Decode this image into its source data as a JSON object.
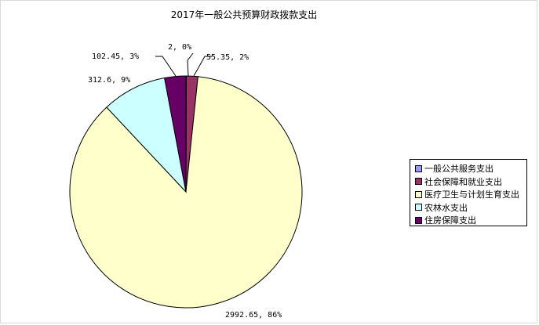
{
  "chart_data": {
    "type": "pie",
    "title": "2017年一般公共预算财政拨款支出",
    "slices": [
      {
        "name": "一般公共服务支出",
        "value": 2,
        "percent": 0,
        "label": "2, 0%",
        "color": "#9999ff"
      },
      {
        "name": "社会保障和就业支出",
        "value": 55.35,
        "percent": 2,
        "label": "55.35, 2%",
        "color": "#993366"
      },
      {
        "name": "医疗卫生与计划生育支出",
        "value": 2992.65,
        "percent": 86,
        "label": "2992.65, 86%",
        "color": "#ffffcc"
      },
      {
        "name": "农林水支出",
        "value": 312.6,
        "percent": 9,
        "label": "312.6, 9%",
        "color": "#ccffff"
      },
      {
        "name": "住房保障支出",
        "value": 102.45,
        "percent": 3,
        "label": "102.45, 3%",
        "color": "#660066"
      }
    ],
    "legend_position": "right"
  }
}
